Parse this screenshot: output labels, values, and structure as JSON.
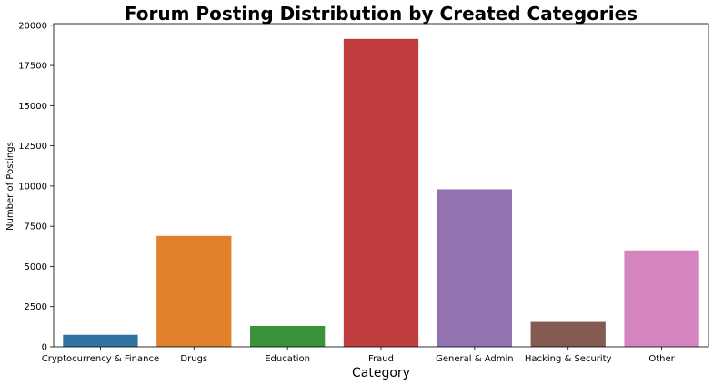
{
  "chart_data": {
    "type": "bar",
    "title": "Forum Posting Distribution by Created Categories",
    "xlabel": "Category",
    "ylabel": "Number of Postings",
    "categories": [
      "Cryptocurrency & Finance",
      "Drugs",
      "Education",
      "Fraud",
      "General & Admin",
      "Hacking & Security",
      "Other"
    ],
    "values": [
      750,
      6900,
      1300,
      19150,
      9800,
      1550,
      6000
    ],
    "colors": [
      "#3274a1",
      "#e1812c",
      "#3a923a",
      "#c03d3e",
      "#9372b2",
      "#845b53",
      "#d684bd"
    ],
    "ylim": [
      0,
      20100
    ],
    "yticks": [
      0,
      2500,
      5000,
      7500,
      10000,
      12500,
      15000,
      17500,
      20000
    ],
    "grid": false,
    "legend": "none"
  }
}
